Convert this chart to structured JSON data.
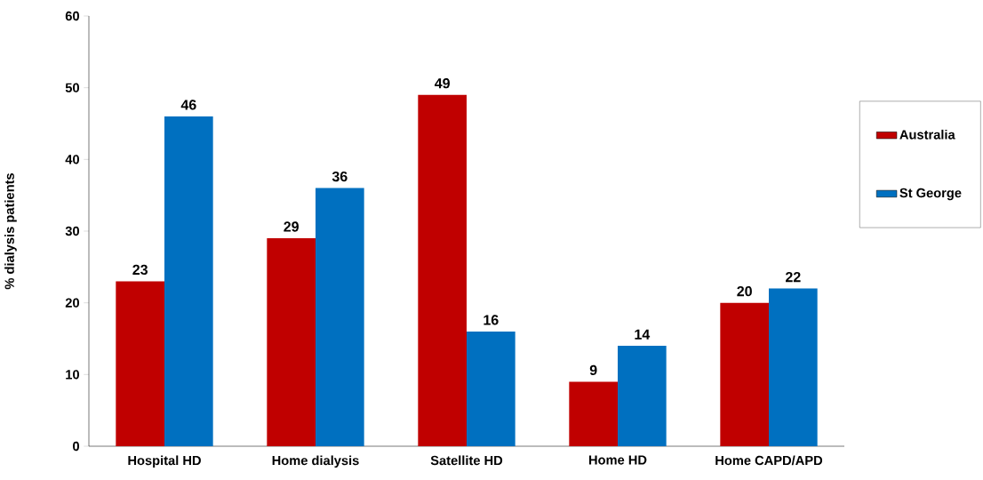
{
  "chart_data": {
    "type": "bar",
    "ylabel": "% dialysis patients",
    "categories": [
      "Hospital HD",
      "Home dialysis",
      "Satellite HD",
      "Home HD",
      "Home CAPD/APD"
    ],
    "series": [
      {
        "name": "Australia",
        "color": "#c00000",
        "values": [
          23,
          29,
          49,
          9,
          20
        ]
      },
      {
        "name": "St George",
        "color": "#0070c0",
        "values": [
          46,
          36,
          16,
          14,
          22
        ]
      }
    ],
    "ylim": [
      0,
      60
    ],
    "yticks": [
      0,
      10,
      20,
      30,
      40,
      50,
      60
    ],
    "grid": false,
    "legend": "right",
    "data_labels": true
  }
}
